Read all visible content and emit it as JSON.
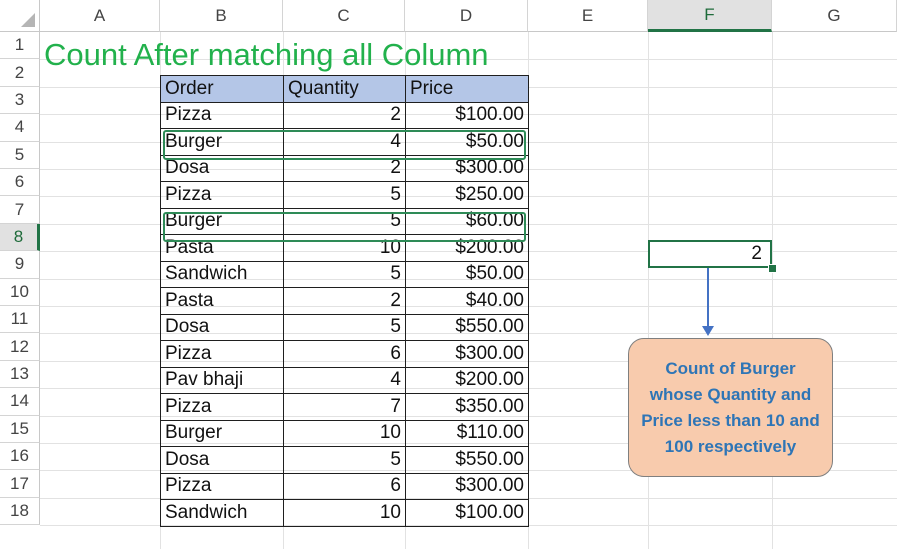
{
  "columns": [
    "A",
    "B",
    "C",
    "D",
    "E",
    "F",
    "G"
  ],
  "selected_column": "F",
  "rows": [
    "1",
    "2",
    "3",
    "4",
    "5",
    "6",
    "7",
    "8",
    "9",
    "10",
    "11",
    "12",
    "13",
    "14",
    "15",
    "16",
    "17",
    "18"
  ],
  "selected_row": "8",
  "title": "Count After matching all Column",
  "table": {
    "headers": [
      "Order",
      "Quantity",
      "Price"
    ],
    "rows": [
      [
        "Pizza",
        "2",
        "$100.00"
      ],
      [
        "Burger",
        "4",
        "$50.00"
      ],
      [
        "Dosa",
        "2",
        "$300.00"
      ],
      [
        "Pizza",
        "5",
        "$250.00"
      ],
      [
        "Burger",
        "5",
        "$60.00"
      ],
      [
        "Pasta",
        "10",
        "$200.00"
      ],
      [
        "Sandwich",
        "5",
        "$50.00"
      ],
      [
        "Pasta",
        "2",
        "$40.00"
      ],
      [
        "Dosa",
        "5",
        "$550.00"
      ],
      [
        "Pizza",
        "6",
        "$300.00"
      ],
      [
        "Pav bhaji",
        "4",
        "$200.00"
      ],
      [
        "Pizza",
        "7",
        "$350.00"
      ],
      [
        "Burger",
        "10",
        "$110.00"
      ],
      [
        "Dosa",
        "5",
        "$550.00"
      ],
      [
        "Pizza",
        "6",
        "$300.00"
      ],
      [
        "Sandwich",
        "10",
        "$100.00"
      ]
    ]
  },
  "result_value": "2",
  "callout_text": "Count of Burger whose Quantity and Price less than 10 and 100 respectively",
  "colors": {
    "title": "#22b14c",
    "header_fill": "#b4c6e7",
    "highlight_border": "#2e8b57",
    "callout_fill": "#f8cbad",
    "callout_text": "#2e75b6",
    "arrow": "#4472c4",
    "selection": "#217346"
  }
}
